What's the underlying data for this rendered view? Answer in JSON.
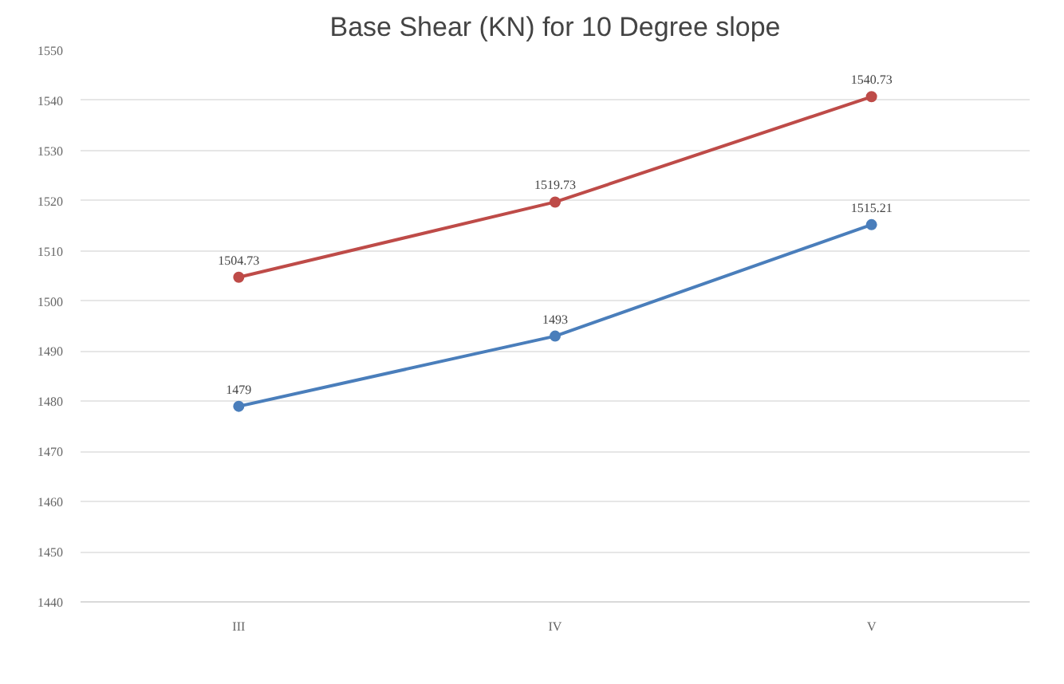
{
  "chart_data": {
    "type": "line",
    "title": "Base Shear (KN) for 10 Degree slope",
    "categories": [
      "III",
      "IV",
      "V"
    ],
    "series": [
      {
        "color": "#4a7ebb",
        "values": [
          1479,
          1493,
          1515.21
        ]
      },
      {
        "color": "#be4b48",
        "values": [
          1504.73,
          1519.73,
          1540.73
        ]
      }
    ],
    "ylim": [
      1440,
      1550
    ],
    "yticks": [
      1440,
      1450,
      1460,
      1470,
      1480,
      1490,
      1500,
      1510,
      1520,
      1530,
      1540,
      1550
    ],
    "grid": "y",
    "marker": "circle",
    "line_style": "solid",
    "data_labels": true
  }
}
